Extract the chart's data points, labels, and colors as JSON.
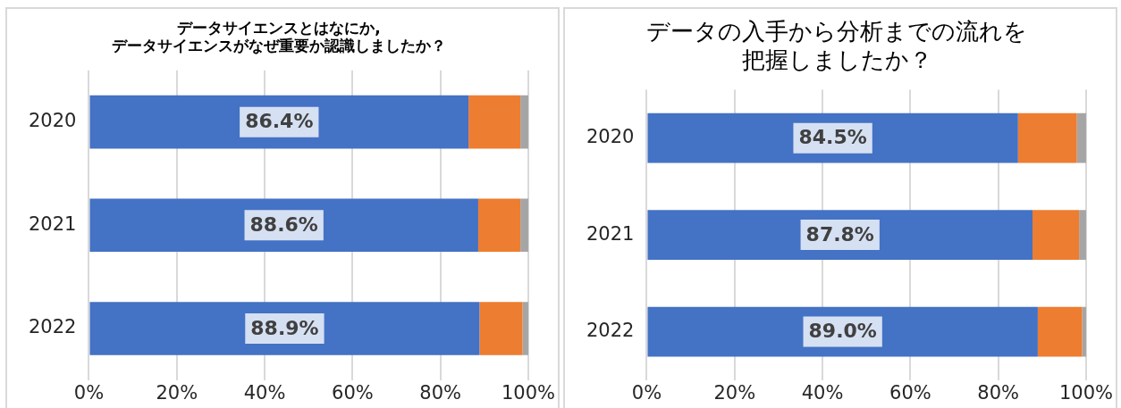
{
  "chart_data": [
    {
      "type": "bar",
      "title": "データサイエンスとはなにか,\nデータサイエンスがなぜ重要か認識しましたか？",
      "orientation": "horizontal",
      "stacked": true,
      "categories": [
        "2020",
        "2021",
        "2022"
      ],
      "series": [
        {
          "color": "#4472c4",
          "values": [
            86.4,
            88.6,
            88.9
          ],
          "value_labels": [
            "86.4%",
            "88.6%",
            "88.9%"
          ]
        },
        {
          "color": "#ed7d31",
          "values": [
            11.8,
            9.6,
            9.8
          ]
        },
        {
          "color": "#a5a5a5",
          "values": [
            1.8,
            1.8,
            1.3
          ]
        }
      ],
      "xlim": [
        0,
        100
      ],
      "xticks": [
        {
          "value": 0,
          "label": "0%"
        },
        {
          "value": 20,
          "label": "20%"
        },
        {
          "value": 40,
          "label": "40%"
        },
        {
          "value": 60,
          "label": "60%"
        },
        {
          "value": 80,
          "label": "80%"
        },
        {
          "value": 100,
          "label": "100%"
        }
      ],
      "grid": "x",
      "legend": false
    },
    {
      "type": "bar",
      "title": "データの入手から分析までの流れを把握しましたか？",
      "orientation": "horizontal",
      "stacked": true,
      "categories": [
        "2020",
        "2021",
        "2022"
      ],
      "series": [
        {
          "color": "#4472c4",
          "values": [
            84.5,
            87.8,
            89.0
          ],
          "value_labels": [
            "84.5%",
            "87.8%",
            "89.0%"
          ]
        },
        {
          "color": "#ed7d31",
          "values": [
            13.4,
            10.6,
            10.1
          ]
        },
        {
          "color": "#a5a5a5",
          "values": [
            2.1,
            1.6,
            0.9
          ]
        }
      ],
      "xlim": [
        0,
        100
      ],
      "xticks": [
        {
          "value": 0,
          "label": "0%"
        },
        {
          "value": 20,
          "label": "20%"
        },
        {
          "value": 40,
          "label": "40%"
        },
        {
          "value": 60,
          "label": "60%"
        },
        {
          "value": 80,
          "label": "80%"
        },
        {
          "value": 100,
          "label": "100%"
        }
      ],
      "grid": "x",
      "legend": false
    }
  ]
}
